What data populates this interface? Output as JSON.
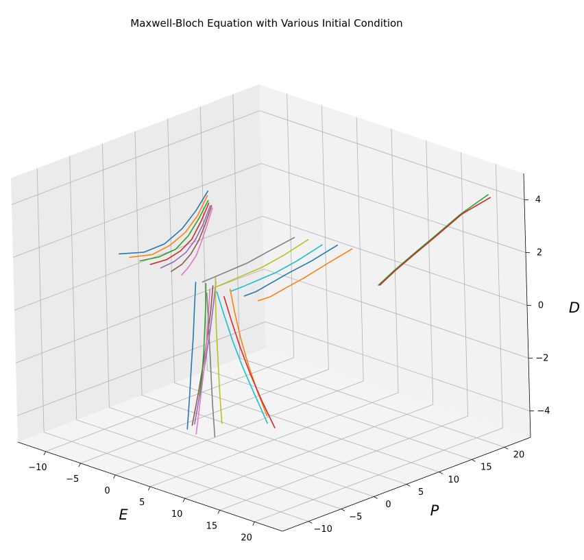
{
  "chart_data": {
    "type": "line3d",
    "title": "Maxwell-Bloch Equation with Various Initial Condition",
    "xlabel": "E",
    "ylabel": "P",
    "zlabel": "D",
    "xlim": [
      -14,
      24
    ],
    "ylim": [
      -14,
      24
    ],
    "zlim": [
      -5,
      5
    ],
    "x_ticks": [
      "−10",
      "−5",
      "0",
      "5",
      "10",
      "15",
      "20"
    ],
    "y_ticks": [
      "−10",
      "−5",
      "0",
      "5",
      "10",
      "15",
      "20"
    ],
    "z_ticks": [
      "−4",
      "−2",
      "0",
      "2",
      "4"
    ],
    "x_tick_values": [
      -10,
      -5,
      0,
      5,
      10,
      15,
      20
    ],
    "y_tick_values": [
      -10,
      -5,
      0,
      5,
      10,
      15,
      20
    ],
    "z_tick_values": [
      -4,
      -2,
      0,
      2,
      4
    ],
    "grid": true,
    "legend": "none",
    "view": {
      "elev": 15,
      "azim": -45
    },
    "palette": [
      "#1f77b4",
      "#ff7f0e",
      "#2ca02c",
      "#d62728",
      "#9467bd",
      "#8c564b",
      "#e377c2",
      "#7f7f7f",
      "#bcbd22",
      "#17becf"
    ],
    "series": [
      {
        "x": [
          -12.0,
          -8.3,
          -5.2,
          -2.6,
          -0.4,
          1.4
        ],
        "y": [
          0.0,
          -0.1,
          -0.2,
          -0.2,
          -0.3,
          -0.3
        ],
        "z": [
          1.0,
          1.4,
          2.0,
          2.8,
          3.7,
          4.6
        ]
      },
      {
        "x": [
          -10.5,
          -7.2,
          -4.5,
          -2.2,
          -0.3,
          1.2
        ],
        "y": [
          0.0,
          0.0,
          -0.1,
          -0.1,
          -0.2,
          -0.2
        ],
        "z": [
          1.0,
          1.4,
          2.0,
          2.7,
          3.5,
          4.4
        ]
      },
      {
        "x": [
          -9.0,
          -6.2,
          -3.8,
          -1.8,
          -0.2,
          1.2
        ],
        "y": [
          0.0,
          0.0,
          0.0,
          -0.1,
          -0.1,
          -0.1
        ],
        "z": [
          1.0,
          1.4,
          1.9,
          2.6,
          3.4,
          4.2
        ]
      },
      {
        "x": [
          -7.5,
          -5.1,
          -3.1,
          -1.4,
          0.0,
          1.2
        ],
        "y": [
          0.0,
          0.0,
          0.0,
          0.0,
          0.0,
          0.0
        ],
        "z": [
          1.0,
          1.4,
          1.9,
          2.5,
          3.3,
          4.1
        ]
      },
      {
        "x": [
          -6.0,
          -4.1,
          -2.4,
          -1.0,
          0.2,
          1.3
        ],
        "y": [
          0.0,
          0.0,
          0.1,
          0.1,
          0.1,
          0.1
        ],
        "z": [
          1.0,
          1.4,
          1.9,
          2.5,
          3.2,
          4.0
        ]
      },
      {
        "x": [
          -4.5,
          -3.0,
          -1.7,
          -0.6,
          0.4,
          1.4
        ],
        "y": [
          0.0,
          0.1,
          0.1,
          0.2,
          0.2,
          0.2
        ],
        "z": [
          1.0,
          1.4,
          1.9,
          2.5,
          3.2,
          4.0
        ]
      },
      {
        "x": [
          -3.0,
          -2.0,
          -1.0,
          -0.2,
          0.6,
          1.4
        ],
        "y": [
          0.0,
          0.1,
          0.2,
          0.2,
          0.3,
          0.3
        ],
        "z": [
          1.0,
          1.4,
          1.9,
          2.5,
          3.2,
          3.9
        ]
      },
      {
        "x": [
          0.0,
          1.5,
          3.5,
          6.0,
          9.0,
          12.5
        ],
        "y": [
          0.0,
          0.2,
          0.4,
          0.6,
          0.8,
          1.0
        ],
        "z": [
          1.0,
          1.3,
          1.7,
          2.2,
          2.9,
          3.7
        ]
      },
      {
        "x": [
          2.0,
          3.5,
          5.5,
          8.0,
          11.0,
          14.5
        ],
        "y": [
          0.0,
          0.2,
          0.4,
          0.6,
          0.8,
          1.0
        ],
        "z": [
          1.0,
          1.3,
          1.7,
          2.2,
          2.9,
          3.8
        ]
      },
      {
        "x": [
          4.0,
          5.6,
          7.6,
          10.1,
          13.1,
          16.6
        ],
        "y": [
          0.0,
          0.2,
          0.3,
          0.5,
          0.7,
          0.9
        ],
        "z": [
          1.0,
          1.3,
          1.7,
          2.2,
          2.9,
          3.8
        ]
      },
      {
        "x": [
          6.0,
          7.6,
          9.7,
          12.2,
          15.3,
          18.9
        ],
        "y": [
          0.0,
          0.1,
          0.2,
          0.4,
          0.6,
          0.8
        ],
        "z": [
          1.0,
          1.3,
          1.8,
          2.4,
          3.1,
          4.0
        ]
      },
      {
        "x": [
          8.0,
          9.7,
          11.8,
          14.4,
          17.6,
          21.3
        ],
        "y": [
          0.0,
          0.1,
          0.2,
          0.3,
          0.4,
          0.5
        ],
        "z": [
          1.0,
          1.3,
          1.8,
          2.4,
          3.2,
          4.1
        ]
      },
      {
        "x": [
          14.0,
          15.5,
          17.4,
          19.6,
          22.0,
          24.5
        ],
        "y": [
          12.0,
          12.8,
          13.8,
          15.0,
          16.4,
          18.0
        ],
        "z": [
          1.0,
          1.6,
          2.3,
          3.1,
          4.0,
          4.8
        ]
      },
      {
        "x": [
          14.1,
          15.6,
          17.5,
          19.7,
          22.1,
          24.7
        ],
        "y": [
          12.1,
          12.9,
          13.9,
          15.1,
          16.5,
          18.1
        ],
        "z": [
          1.0,
          1.6,
          2.3,
          3.1,
          4.0,
          4.7
        ]
      },
      {
        "x": [
          0.5,
          0.3,
          0.0,
          -0.4,
          -0.9,
          -1.5
        ],
        "y": [
          1.5,
          1.2,
          0.9,
          0.6,
          0.2,
          -0.2
        ],
        "z": [
          0.9,
          0.0,
          -1.0,
          -2.0,
          -3.2,
          -4.5
        ]
      },
      {
        "x": [
          1.0,
          0.9,
          0.6,
          0.2,
          -0.3,
          -0.9
        ],
        "y": [
          0.5,
          0.2,
          -0.1,
          -0.4,
          -0.8,
          -1.2
        ],
        "z": [
          0.9,
          0.0,
          -1.0,
          -2.0,
          -3.2,
          -4.4
        ]
      },
      {
        "x": [
          1.5,
          1.5,
          1.4,
          1.2,
          0.9,
          0.6
        ],
        "y": [
          -0.5,
          -0.8,
          -1.1,
          -1.4,
          -1.8,
          -2.2
        ],
        "z": [
          0.9,
          0.0,
          -1.0,
          -2.1,
          -3.3,
          -4.5
        ]
      },
      {
        "x": [
          2.0,
          2.2,
          2.4,
          2.6,
          2.8,
          3.1
        ],
        "y": [
          -1.5,
          -1.6,
          -1.7,
          -1.8,
          -1.9,
          -2.0
        ],
        "z": [
          0.9,
          0.0,
          -1.0,
          -2.1,
          -3.2,
          -4.4
        ]
      },
      {
        "x": [
          -0.5,
          -0.3,
          0.0,
          0.4,
          0.9,
          1.5
        ],
        "y": [
          2.5,
          2.2,
          1.9,
          1.6,
          1.2,
          0.8
        ],
        "z": [
          0.9,
          0.0,
          -1.0,
          -2.0,
          -3.1,
          -4.3
        ]
      },
      {
        "x": [
          2.5,
          3.0,
          3.6,
          4.3,
          5.1,
          6.0
        ],
        "y": [
          -0.5,
          0.0,
          0.6,
          1.3,
          2.1,
          3.0
        ],
        "z": [
          0.9,
          0.0,
          -1.0,
          -2.0,
          -3.0,
          -4.1
        ]
      },
      {
        "x": [
          -1.0,
          -0.8,
          -0.6,
          -0.4,
          -0.2,
          0.0
        ],
        "y": [
          0.0,
          -0.5,
          -1.0,
          -1.6,
          -2.2,
          -2.9
        ],
        "z": [
          0.9,
          0.0,
          -1.0,
          -2.0,
          -3.1,
          -4.3
        ]
      },
      {
        "x": [
          3.0,
          3.2,
          3.5,
          3.9,
          4.4,
          5.0
        ],
        "y": [
          1.0,
          1.4,
          1.9,
          2.5,
          3.2,
          4.0
        ],
        "z": [
          0.9,
          0.0,
          -1.0,
          -2.0,
          -3.0,
          -4.0
        ]
      },
      {
        "x": [
          0.0,
          -0.5,
          -1.2,
          -2.0,
          -3.0,
          -4.2
        ],
        "y": [
          0.5,
          0.9,
          1.4,
          2.0,
          2.7,
          3.5
        ],
        "z": [
          0.9,
          0.0,
          -1.0,
          -2.0,
          -3.0,
          -4.0
        ]
      },
      {
        "x": [
          4.0,
          4.6,
          5.3,
          6.1,
          7.0,
          8.0
        ],
        "y": [
          -1.0,
          -0.6,
          -0.1,
          0.5,
          1.2,
          2.0
        ],
        "z": [
          0.9,
          0.0,
          -1.0,
          -2.0,
          -3.0,
          -4.0
        ]
      }
    ]
  }
}
